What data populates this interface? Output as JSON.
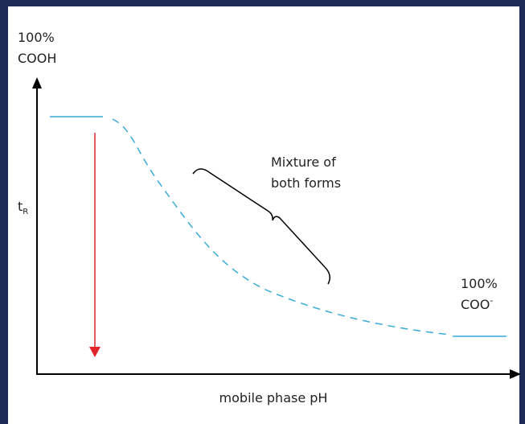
{
  "y_axis": {
    "top_label": {
      "line1": "100%",
      "line2": "COOH"
    },
    "label": {
      "text": "t",
      "subscript": "R"
    }
  },
  "x_axis": {
    "label": "mobile phase pH"
  },
  "annotation": {
    "line1": "Mixture of",
    "line2": "both forms"
  },
  "end_label": {
    "line1": "100%",
    "line2": {
      "text": "COO",
      "superscript": "-"
    }
  }
}
